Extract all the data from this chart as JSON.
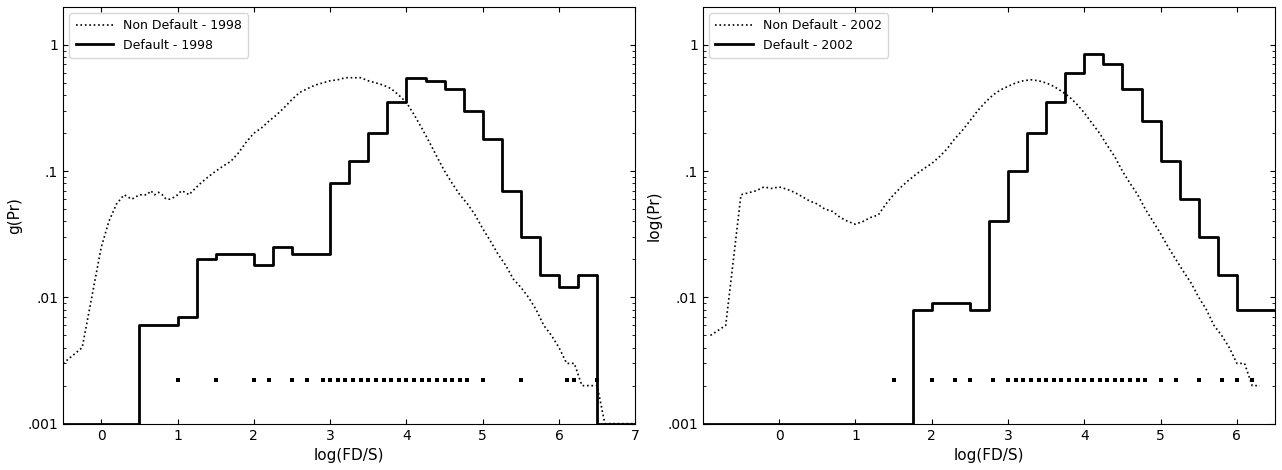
{
  "left": {
    "ylabel": "g(Pr)",
    "xlabel": "log(FD/S)",
    "legend": [
      "Non Default - 1998",
      "Default - 1998"
    ],
    "xlim": [
      -0.5,
      7
    ],
    "ylim": [
      0.001,
      2
    ],
    "xticks": [
      0,
      1,
      2,
      3,
      4,
      5,
      6,
      7
    ],
    "nondefault_x": [
      -0.5,
      -0.25,
      0.0,
      0.1,
      0.2,
      0.3,
      0.4,
      0.5,
      0.6,
      0.65,
      0.7,
      0.75,
      0.8,
      0.85,
      0.9,
      0.95,
      1.0,
      1.05,
      1.1,
      1.15,
      1.2,
      1.3,
      1.4,
      1.5,
      1.6,
      1.7,
      1.8,
      1.9,
      2.0,
      2.1,
      2.2,
      2.3,
      2.4,
      2.5,
      2.6,
      2.7,
      2.8,
      2.9,
      3.0,
      3.1,
      3.2,
      3.3,
      3.4,
      3.5,
      3.6,
      3.7,
      3.8,
      3.9,
      4.0,
      4.1,
      4.2,
      4.3,
      4.4,
      4.5,
      4.6,
      4.7,
      4.8,
      4.9,
      5.0,
      5.1,
      5.2,
      5.3,
      5.4,
      5.5,
      5.6,
      5.7,
      5.8,
      5.9,
      6.0,
      6.1,
      6.2,
      6.3,
      6.4,
      6.5,
      6.6,
      6.7,
      7.0
    ],
    "nondefault_y": [
      0.003,
      0.004,
      0.025,
      0.04,
      0.055,
      0.065,
      0.06,
      0.065,
      0.065,
      0.07,
      0.065,
      0.068,
      0.065,
      0.06,
      0.06,
      0.062,
      0.065,
      0.07,
      0.068,
      0.065,
      0.07,
      0.08,
      0.09,
      0.1,
      0.11,
      0.12,
      0.14,
      0.17,
      0.2,
      0.22,
      0.25,
      0.28,
      0.32,
      0.37,
      0.42,
      0.45,
      0.48,
      0.5,
      0.52,
      0.53,
      0.55,
      0.55,
      0.55,
      0.52,
      0.5,
      0.48,
      0.45,
      0.4,
      0.35,
      0.28,
      0.22,
      0.17,
      0.13,
      0.1,
      0.08,
      0.065,
      0.055,
      0.045,
      0.035,
      0.028,
      0.022,
      0.018,
      0.014,
      0.012,
      0.01,
      0.008,
      0.006,
      0.005,
      0.004,
      0.003,
      0.003,
      0.002,
      0.002,
      0.002,
      0.001,
      0.001,
      0.001
    ],
    "default_bin_edges": [
      -0.5,
      0.0,
      0.5,
      1.0,
      1.25,
      1.5,
      2.0,
      2.25,
      2.5,
      3.0,
      3.25,
      3.5,
      3.75,
      4.0,
      4.25,
      4.5,
      4.75,
      5.0,
      5.25,
      5.5,
      5.75,
      6.0,
      6.25,
      6.5,
      7.0
    ],
    "default_bin_vals": [
      0.001,
      0.001,
      0.006,
      0.007,
      0.02,
      0.022,
      0.018,
      0.025,
      0.022,
      0.08,
      0.12,
      0.2,
      0.35,
      0.55,
      0.52,
      0.45,
      0.3,
      0.18,
      0.07,
      0.03,
      0.015,
      0.012,
      0.015,
      0.001
    ],
    "rug_default": [
      1.0,
      1.5,
      2.0,
      2.2,
      2.5,
      2.7,
      2.9,
      3.0,
      3.1,
      3.2,
      3.3,
      3.4,
      3.5,
      3.6,
      3.7,
      3.8,
      3.9,
      4.0,
      4.1,
      4.2,
      4.3,
      4.4,
      4.5,
      4.6,
      4.7,
      4.8,
      5.0,
      5.5,
      6.1,
      6.2,
      6.5
    ]
  },
  "right": {
    "ylabel": "log(Pr)",
    "xlabel": "log(FD/S)",
    "legend": [
      "Non Default - 2002",
      "Default - 2002"
    ],
    "xlim": [
      -1.0,
      6.5
    ],
    "ylim": [
      0.001,
      2
    ],
    "xticks": [
      0,
      1,
      2,
      3,
      4,
      5,
      6
    ],
    "nondefault_x": [
      -0.9,
      -0.7,
      -0.5,
      -0.3,
      -0.2,
      -0.1,
      0.0,
      0.1,
      0.2,
      0.3,
      0.4,
      0.5,
      0.6,
      0.7,
      0.8,
      0.9,
      1.0,
      1.1,
      1.2,
      1.3,
      1.4,
      1.5,
      1.6,
      1.7,
      1.8,
      1.9,
      2.0,
      2.1,
      2.2,
      2.3,
      2.4,
      2.5,
      2.6,
      2.7,
      2.8,
      2.9,
      3.0,
      3.1,
      3.2,
      3.3,
      3.4,
      3.5,
      3.6,
      3.7,
      3.8,
      3.9,
      4.0,
      4.1,
      4.2,
      4.3,
      4.4,
      4.5,
      4.6,
      4.7,
      4.8,
      4.9,
      5.0,
      5.1,
      5.2,
      5.3,
      5.4,
      5.5,
      5.6,
      5.7,
      5.8,
      5.9,
      6.0,
      6.1,
      6.2,
      6.3
    ],
    "nondefault_y": [
      0.005,
      0.006,
      0.065,
      0.07,
      0.075,
      0.073,
      0.075,
      0.072,
      0.068,
      0.063,
      0.058,
      0.055,
      0.05,
      0.048,
      0.043,
      0.04,
      0.038,
      0.04,
      0.043,
      0.045,
      0.055,
      0.065,
      0.075,
      0.085,
      0.095,
      0.105,
      0.115,
      0.13,
      0.15,
      0.18,
      0.21,
      0.25,
      0.3,
      0.35,
      0.4,
      0.44,
      0.47,
      0.5,
      0.52,
      0.53,
      0.52,
      0.5,
      0.47,
      0.43,
      0.39,
      0.34,
      0.29,
      0.24,
      0.2,
      0.16,
      0.13,
      0.1,
      0.08,
      0.065,
      0.05,
      0.04,
      0.032,
      0.025,
      0.02,
      0.016,
      0.013,
      0.01,
      0.008,
      0.006,
      0.005,
      0.004,
      0.003,
      0.003,
      0.002,
      0.002
    ],
    "default_bin_edges": [
      -1.0,
      1.5,
      1.75,
      2.0,
      2.5,
      2.75,
      3.0,
      3.25,
      3.5,
      3.75,
      4.0,
      4.25,
      4.5,
      4.75,
      5.0,
      5.25,
      5.5,
      5.75,
      6.0,
      6.25,
      6.5
    ],
    "default_bin_vals": [
      0.001,
      0.001,
      0.008,
      0.009,
      0.008,
      0.04,
      0.1,
      0.2,
      0.35,
      0.6,
      0.85,
      0.7,
      0.45,
      0.25,
      0.12,
      0.06,
      0.03,
      0.015,
      0.008,
      0.008
    ],
    "rug_default": [
      1.5,
      2.0,
      2.3,
      2.5,
      2.8,
      3.0,
      3.1,
      3.2,
      3.3,
      3.4,
      3.5,
      3.6,
      3.7,
      3.8,
      3.9,
      4.0,
      4.1,
      4.2,
      4.3,
      4.4,
      4.5,
      4.6,
      4.7,
      4.8,
      5.0,
      5.2,
      5.5,
      5.8,
      6.0,
      6.2
    ]
  },
  "linewidth_default": 2.0,
  "linewidth_nondefault": 1.2,
  "color": "#000000",
  "background": "#ffffff"
}
